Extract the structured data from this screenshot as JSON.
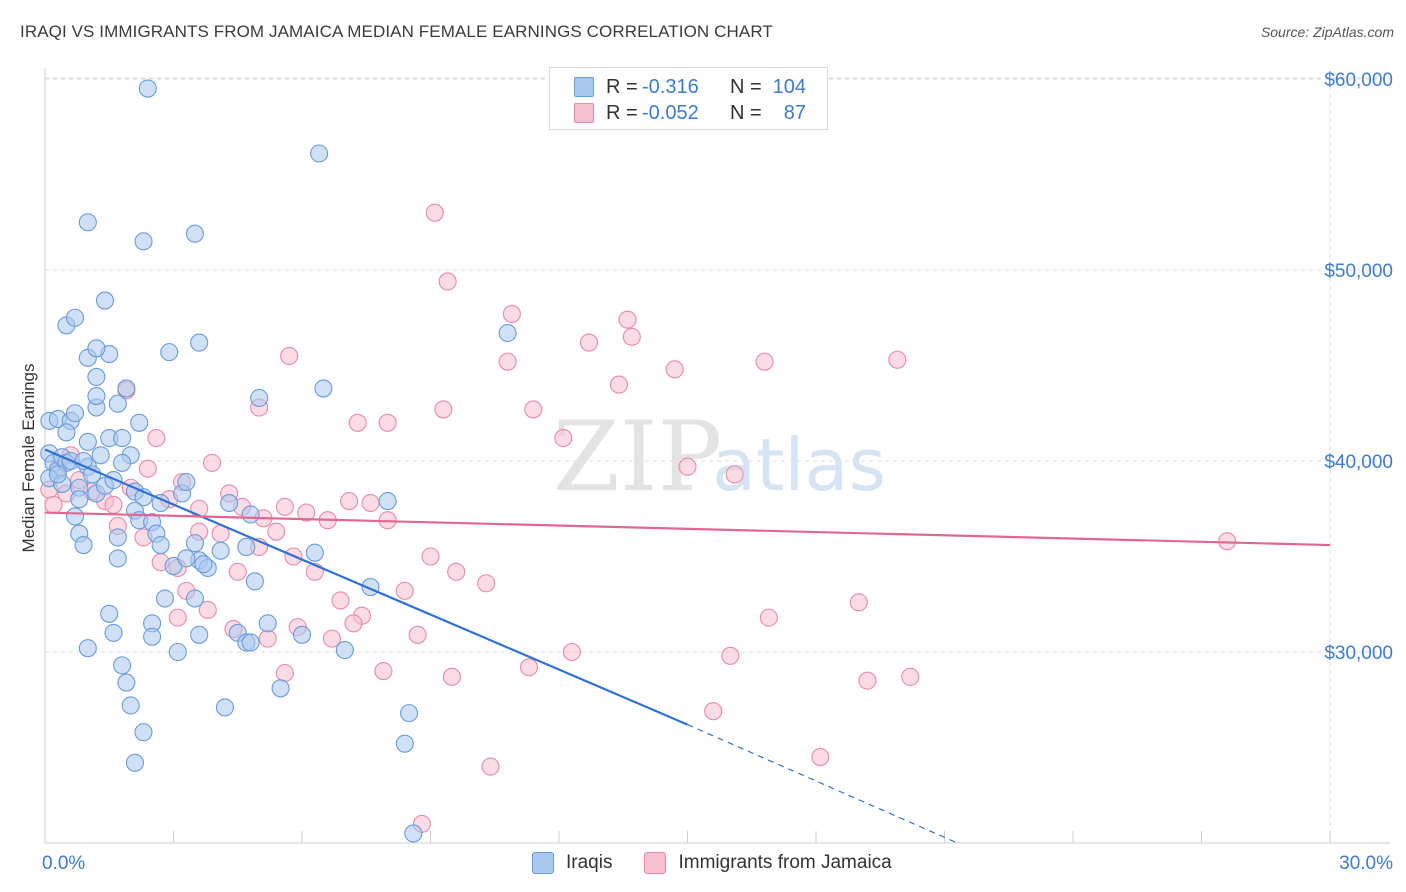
{
  "title": "IRAQI VS IMMIGRANTS FROM JAMAICA MEDIAN FEMALE EARNINGS CORRELATION CHART",
  "source": "Source: ZipAtlas.com",
  "watermark": {
    "zip": "ZIP",
    "atlas": "atlas"
  },
  "legend_top": [
    {
      "r_label": "R =",
      "r_value": "-0.316",
      "n_label": "N =",
      "n_value": "104"
    },
    {
      "r_label": "R =",
      "r_value": "-0.052",
      "n_label": "N =",
      "n_value": "87"
    }
  ],
  "legend_bottom": [
    "Iraqis",
    "Immigrants from Jamaica"
  ],
  "colors": {
    "iraqis_fill": "#a9c8f0",
    "iraqis_stroke": "#6a9bdc",
    "iraqis_line": "#2f72d0",
    "jamaica_fill": "#f7bfd0",
    "jamaica_stroke": "#e98aaa",
    "jamaica_line": "#e06791",
    "axis_value": "#3d7bd0",
    "grid": "#dcdcdc"
  },
  "chart_data": {
    "type": "scatter",
    "title": "IRAQI VS IMMIGRANTS FROM JAMAICA MEDIAN FEMALE EARNINGS CORRELATION CHART",
    "xlabel": "",
    "ylabel": "Median Female Earnings",
    "x_tick_labels": [
      "0.0%",
      "30.0%"
    ],
    "y_ticks": [
      {
        "value": 30000,
        "label": "$30,000"
      },
      {
        "value": 40000,
        "label": "$40,000"
      },
      {
        "value": 50000,
        "label": "$50,000"
      },
      {
        "value": 60000,
        "label": "$60,000"
      }
    ],
    "xlim": [
      0,
      30
    ],
    "ylim": [
      20000,
      61000
    ],
    "grid": true,
    "legend_placement": "top-center",
    "series": [
      {
        "name": "Iraqis",
        "trend": {
          "x0": 0,
          "y0": 40600,
          "x1": 15,
          "y1": 26200,
          "dash_to_x": 21.3,
          "dash_to_y": 20000
        },
        "points": [
          [
            0.1,
            42100
          ],
          [
            0.3,
            42200
          ],
          [
            0.1,
            40400
          ],
          [
            0.2,
            39900
          ],
          [
            0.3,
            39500
          ],
          [
            0.1,
            39100
          ],
          [
            0.4,
            40200
          ],
          [
            0.5,
            39900
          ],
          [
            0.6,
            40000
          ],
          [
            0.4,
            38800
          ],
          [
            0.8,
            38600
          ],
          [
            0.7,
            37100
          ],
          [
            0.6,
            42100
          ],
          [
            0.5,
            41500
          ],
          [
            0.7,
            42500
          ],
          [
            0.3,
            39300
          ],
          [
            1.0,
            39700
          ],
          [
            0.9,
            40000
          ],
          [
            0.8,
            38000
          ],
          [
            1.2,
            38300
          ],
          [
            1.4,
            38700
          ],
          [
            1.3,
            40300
          ],
          [
            1.1,
            39300
          ],
          [
            1.6,
            39000
          ],
          [
            2.0,
            40300
          ],
          [
            1.8,
            39900
          ],
          [
            2.1,
            38400
          ],
          [
            1.5,
            41200
          ],
          [
            1.8,
            41200
          ],
          [
            1.0,
            41000
          ],
          [
            2.2,
            42000
          ],
          [
            1.7,
            43000
          ],
          [
            1.2,
            42800
          ],
          [
            1.2,
            43400
          ],
          [
            1.9,
            43800
          ],
          [
            1.2,
            44400
          ],
          [
            1.0,
            45400
          ],
          [
            1.5,
            45600
          ],
          [
            1.2,
            45900
          ],
          [
            0.5,
            47100
          ],
          [
            0.7,
            47500
          ],
          [
            1.4,
            48400
          ],
          [
            2.9,
            45700
          ],
          [
            3.6,
            46200
          ],
          [
            1.0,
            52500
          ],
          [
            2.3,
            51500
          ],
          [
            3.5,
            51900
          ],
          [
            2.4,
            59500
          ],
          [
            6.4,
            56100
          ],
          [
            10.8,
            46700
          ],
          [
            6.5,
            43800
          ],
          [
            5.0,
            43300
          ],
          [
            3.2,
            38300
          ],
          [
            3.3,
            38900
          ],
          [
            2.7,
            37800
          ],
          [
            3.5,
            35700
          ],
          [
            2.3,
            38100
          ],
          [
            2.1,
            37400
          ],
          [
            2.2,
            36900
          ],
          [
            2.5,
            36800
          ],
          [
            2.6,
            36200
          ],
          [
            4.3,
            37800
          ],
          [
            4.8,
            37200
          ],
          [
            4.7,
            35500
          ],
          [
            4.1,
            35300
          ],
          [
            3.6,
            34800
          ],
          [
            3.0,
            34500
          ],
          [
            3.3,
            34900
          ],
          [
            3.8,
            34400
          ],
          [
            3.7,
            34600
          ],
          [
            2.7,
            35600
          ],
          [
            1.7,
            36000
          ],
          [
            0.8,
            36200
          ],
          [
            0.9,
            35600
          ],
          [
            1.7,
            34900
          ],
          [
            3.5,
            32800
          ],
          [
            4.9,
            33700
          ],
          [
            2.5,
            31500
          ],
          [
            1.5,
            32000
          ],
          [
            2.5,
            30800
          ],
          [
            3.6,
            30900
          ],
          [
            4.5,
            31000
          ],
          [
            4.7,
            30500
          ],
          [
            4.8,
            30500
          ],
          [
            6.0,
            30900
          ],
          [
            7.0,
            30100
          ],
          [
            7.6,
            33400
          ],
          [
            8.0,
            37900
          ],
          [
            1.0,
            30200
          ],
          [
            1.8,
            29300
          ],
          [
            1.9,
            28400
          ],
          [
            2.0,
            27200
          ],
          [
            2.3,
            25800
          ],
          [
            2.1,
            24200
          ],
          [
            4.2,
            27100
          ],
          [
            5.5,
            28100
          ],
          [
            8.4,
            25200
          ],
          [
            8.5,
            26800
          ],
          [
            8.6,
            20500
          ],
          [
            3.1,
            30000
          ],
          [
            2.8,
            32800
          ],
          [
            1.6,
            31000
          ],
          [
            5.2,
            31500
          ],
          [
            6.3,
            35200
          ]
        ]
      },
      {
        "name": "Immigrants from Jamaica",
        "trend": {
          "x0": 0,
          "y0": 37300,
          "x1": 30,
          "y1": 35600
        },
        "points": [
          [
            0.1,
            38500
          ],
          [
            0.2,
            37700
          ],
          [
            0.5,
            38300
          ],
          [
            0.3,
            39600
          ],
          [
            0.6,
            40300
          ],
          [
            0.8,
            39000
          ],
          [
            1.1,
            38400
          ],
          [
            1.4,
            37900
          ],
          [
            1.6,
            37700
          ],
          [
            2.0,
            38600
          ],
          [
            1.9,
            43700
          ],
          [
            2.6,
            41200
          ],
          [
            2.4,
            39600
          ],
          [
            2.9,
            38000
          ],
          [
            3.2,
            38900
          ],
          [
            3.6,
            37500
          ],
          [
            3.9,
            39900
          ],
          [
            4.3,
            38300
          ],
          [
            4.6,
            37600
          ],
          [
            5.1,
            37000
          ],
          [
            5.4,
            36300
          ],
          [
            5.6,
            37600
          ],
          [
            6.1,
            37300
          ],
          [
            6.6,
            36900
          ],
          [
            7.1,
            37900
          ],
          [
            7.6,
            37800
          ],
          [
            8.0,
            36900
          ],
          [
            1.7,
            36600
          ],
          [
            2.3,
            36000
          ],
          [
            2.7,
            34700
          ],
          [
            3.1,
            34400
          ],
          [
            3.6,
            36300
          ],
          [
            4.1,
            36200
          ],
          [
            4.5,
            34200
          ],
          [
            5.0,
            35500
          ],
          [
            5.8,
            35000
          ],
          [
            6.3,
            34200
          ],
          [
            6.9,
            32700
          ],
          [
            7.4,
            31900
          ],
          [
            8.4,
            33200
          ],
          [
            9.0,
            35000
          ],
          [
            9.6,
            34200
          ],
          [
            10.3,
            33600
          ],
          [
            3.3,
            33200
          ],
          [
            3.8,
            32200
          ],
          [
            4.4,
            31200
          ],
          [
            5.2,
            30700
          ],
          [
            5.9,
            31300
          ],
          [
            6.7,
            30700
          ],
          [
            7.2,
            31500
          ],
          [
            7.9,
            29000
          ],
          [
            8.7,
            30900
          ],
          [
            3.1,
            31800
          ],
          [
            5.6,
            28900
          ],
          [
            9.5,
            28700
          ],
          [
            11.3,
            29200
          ],
          [
            10.4,
            24000
          ],
          [
            12.3,
            30000
          ],
          [
            13.4,
            44000
          ],
          [
            13.7,
            46500
          ],
          [
            12.7,
            46200
          ],
          [
            13.6,
            47400
          ],
          [
            14.7,
            44800
          ],
          [
            16.8,
            45200
          ],
          [
            19.9,
            45300
          ],
          [
            15.0,
            39700
          ],
          [
            16.1,
            39300
          ],
          [
            12.1,
            41200
          ],
          [
            11.4,
            42700
          ],
          [
            9.3,
            42700
          ],
          [
            7.3,
            42000
          ],
          [
            8.0,
            42000
          ],
          [
            5.0,
            42800
          ],
          [
            5.7,
            45500
          ],
          [
            10.8,
            45200
          ],
          [
            10.9,
            47700
          ],
          [
            9.4,
            49400
          ],
          [
            9.1,
            53000
          ],
          [
            8.8,
            21000
          ],
          [
            15.6,
            26900
          ],
          [
            18.1,
            24500
          ],
          [
            19.2,
            28500
          ],
          [
            20.2,
            28700
          ],
          [
            16.9,
            31800
          ],
          [
            19.0,
            32600
          ],
          [
            16.0,
            29800
          ],
          [
            27.6,
            35800
          ]
        ]
      }
    ]
  }
}
